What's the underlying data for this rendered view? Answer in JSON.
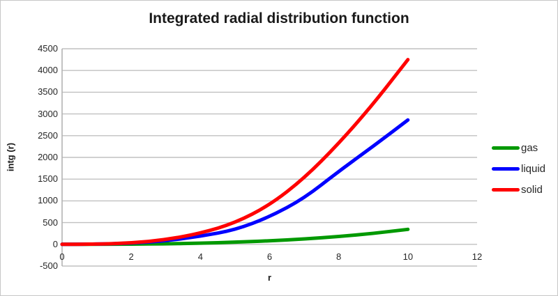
{
  "chart_data": {
    "type": "line",
    "title": "Integrated radial distribution function",
    "xlabel": "r",
    "ylabel": "intg (r)",
    "x": [
      0,
      1,
      2,
      3,
      4,
      5,
      6,
      7,
      8,
      9,
      10
    ],
    "series": [
      {
        "name": "gas",
        "color": "#009900",
        "values": [
          0,
          1,
          4,
          12,
          25,
          48,
          80,
          122,
          178,
          250,
          345
        ]
      },
      {
        "name": "liquid",
        "color": "#0000ff",
        "values": [
          0,
          3,
          25,
          80,
          185,
          330,
          630,
          1060,
          1680,
          2260,
          2860
        ]
      },
      {
        "name": "solid",
        "color": "#ff0000",
        "values": [
          0,
          4,
          30,
          105,
          255,
          490,
          900,
          1520,
          2320,
          3230,
          4250
        ]
      }
    ],
    "xlim": [
      0,
      12
    ],
    "ylim": [
      -500,
      4500
    ],
    "x_ticks": [
      0,
      2,
      4,
      6,
      8,
      10,
      12
    ],
    "y_ticks": [
      -500,
      0,
      500,
      1000,
      1500,
      2000,
      2500,
      3000,
      3500,
      4000,
      4500
    ],
    "grid": "horizontal",
    "gridline_color": "#c0c0c0",
    "axis_line_color": "#b3b3b3",
    "legend_position": "right"
  }
}
